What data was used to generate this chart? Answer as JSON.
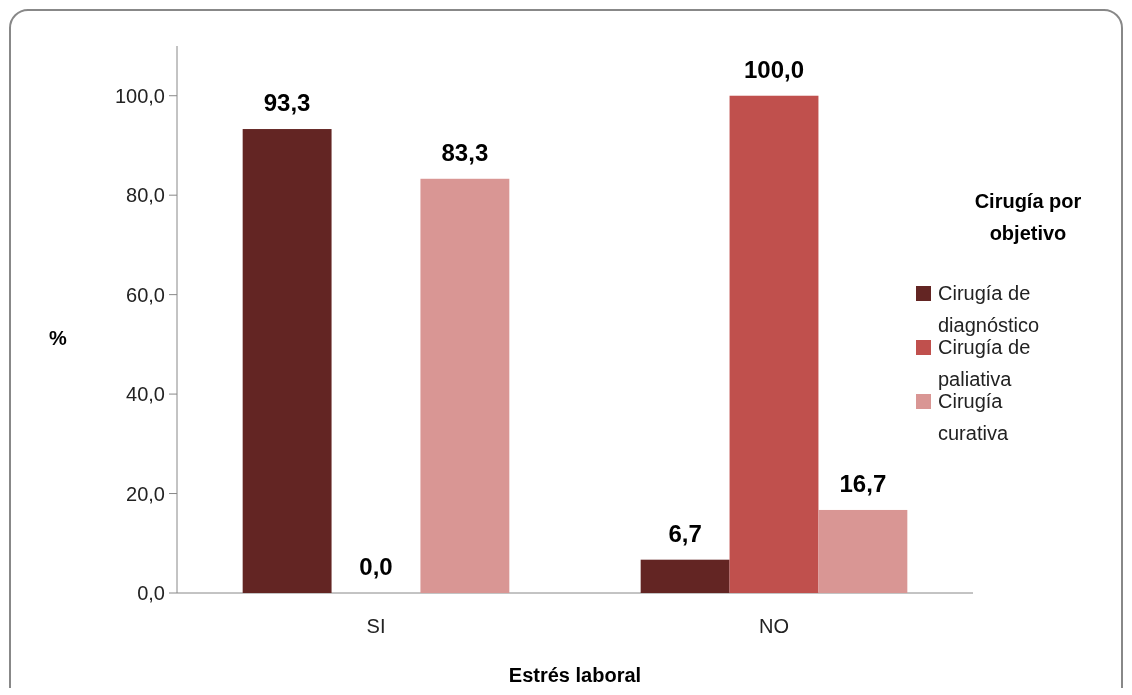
{
  "chart_data": {
    "type": "bar",
    "xlabel": "Estrés laboral",
    "ylabel": "%",
    "legend_title": "Cirugía por objetivo",
    "categories": [
      "SI",
      "NO"
    ],
    "series": [
      {
        "name": "Cirugía de diagnóstico",
        "color": "#632523",
        "values": [
          93.3,
          6.7
        ],
        "value_labels": [
          "93,3",
          "6,7"
        ]
      },
      {
        "name": "Cirugía de paliativa",
        "color": "#c0504d",
        "values": [
          0.0,
          100.0
        ],
        "value_labels": [
          "0,0",
          "100,0"
        ]
      },
      {
        "name": "Cirugía curativa",
        "color": "#d99694",
        "values": [
          83.3,
          16.7
        ],
        "value_labels": [
          "83,3",
          "16,7"
        ]
      }
    ],
    "ylim": [
      0,
      110
    ],
    "yticks": [
      {
        "value": 0,
        "label": "0,0"
      },
      {
        "value": 20,
        "label": "20,0"
      },
      {
        "value": 40,
        "label": "40,0"
      },
      {
        "value": 60,
        "label": "60,0"
      },
      {
        "value": 80,
        "label": "80,0"
      },
      {
        "value": 100,
        "label": "100,0"
      }
    ],
    "legend": "right"
  }
}
